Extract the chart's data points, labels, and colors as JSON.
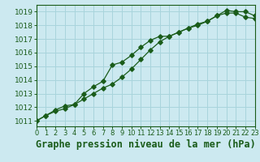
{
  "title": "Graphe pression niveau de la mer (hPa)",
  "xlabel_ticks": [
    0,
    1,
    2,
    3,
    4,
    5,
    6,
    7,
    8,
    9,
    10,
    11,
    12,
    13,
    14,
    15,
    16,
    17,
    18,
    19,
    20,
    21,
    22,
    23
  ],
  "xlim": [
    0,
    23
  ],
  "ylim": [
    1010.6,
    1019.5
  ],
  "yticks": [
    1011,
    1012,
    1013,
    1014,
    1015,
    1016,
    1017,
    1018,
    1019
  ],
  "background_color": "#cce9f0",
  "grid_color": "#a8d4dc",
  "line_color": "#1a5c1a",
  "line1_x": [
    0,
    1,
    2,
    3,
    4,
    5,
    6,
    7,
    8,
    9,
    10,
    11,
    12,
    13,
    14,
    15,
    16,
    17,
    18,
    19,
    20,
    21,
    22,
    23
  ],
  "line1_y": [
    1011.0,
    1011.4,
    1011.7,
    1011.9,
    1012.2,
    1012.6,
    1013.0,
    1013.4,
    1013.7,
    1014.2,
    1014.8,
    1015.5,
    1016.2,
    1016.8,
    1017.2,
    1017.5,
    1017.8,
    1018.1,
    1018.3,
    1018.7,
    1018.9,
    1018.9,
    1018.6,
    1018.5
  ],
  "line2_x": [
    0,
    1,
    2,
    3,
    4,
    5,
    6,
    7,
    8,
    9,
    10,
    11,
    12,
    13,
    14,
    15,
    16,
    17,
    18,
    19,
    20,
    21,
    22,
    23
  ],
  "line2_y": [
    1011.0,
    1011.4,
    1011.8,
    1012.1,
    1012.2,
    1013.0,
    1013.5,
    1013.9,
    1015.1,
    1015.3,
    1015.8,
    1016.4,
    1016.9,
    1017.2,
    1017.2,
    1017.5,
    1017.8,
    1018.0,
    1018.3,
    1018.7,
    1019.1,
    1019.0,
    1019.0,
    1018.7
  ],
  "title_fontsize": 8.5,
  "tick_fontsize": 6.5,
  "marker": "D",
  "markersize": 2.8,
  "linewidth": 0.9
}
